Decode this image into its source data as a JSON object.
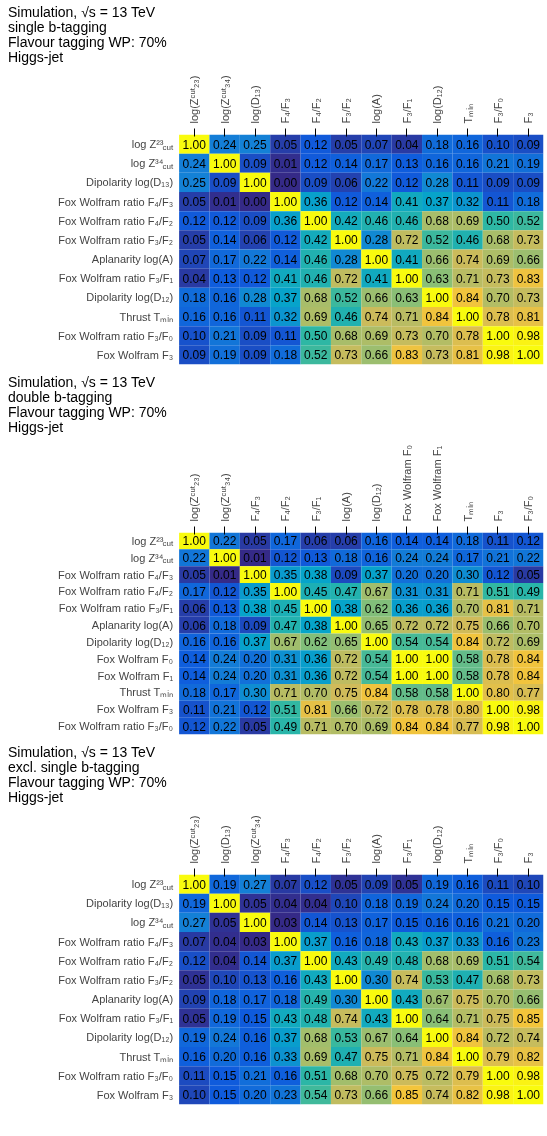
{
  "chart_data": [
    {
      "type": "heatmap",
      "title": "Simulation, √s = 13 TeV",
      "subtitle": "single b-tagging",
      "annotations": [
        "Flavour tagging WP: 70%",
        "Higgs-jet"
      ],
      "data_labels": true,
      "categories": [
        "log(Zᶜᵘᵗ₂₃)",
        "log(Zᶜᵘᵗ₃₄)",
        "log(D₁₃)",
        "F₄/F₃",
        "F₄/F₂",
        "F₃/F₂",
        "log(A)",
        "F₃/F₁",
        "log(D₁₂)",
        "Tₘᵢₙ",
        "F₃/F₀",
        "F₃"
      ],
      "y_categories": [
        "log Z²³$_{cut}$",
        "log Z³⁴$_{cut}$",
        "Dipolarity log(D₁₃)",
        "Fox Wolfram ratio F₄/F₃",
        "Fox Wolfram ratio F₄/F₂",
        "Fox Wolfram ratio F₃/F₂",
        "Aplanarity log(A)",
        "Fox Wolfram ratio F₃/F₁",
        "Dipolarity log(D₁₂)",
        "Thrust Tₘᵢₙ",
        "Fox Wolfram ratio F₃/F₀",
        "Fox Wolfram F₃"
      ],
      "cells": [
        [
          1.0,
          0.24,
          0.25,
          0.05,
          0.12,
          0.05,
          0.07,
          0.04,
          0.18,
          0.16,
          0.1,
          0.09
        ],
        [
          0.24,
          1.0,
          0.09,
          0.01,
          0.12,
          0.14,
          0.17,
          0.13,
          0.16,
          0.16,
          0.21,
          0.19
        ],
        [
          0.25,
          0.09,
          1.0,
          0.0,
          0.09,
          0.06,
          0.22,
          0.12,
          0.28,
          0.11,
          0.09,
          0.09
        ],
        [
          0.05,
          0.01,
          0.0,
          1.0,
          0.36,
          0.12,
          0.14,
          0.41,
          0.37,
          0.32,
          0.11,
          0.18
        ],
        [
          0.12,
          0.12,
          0.09,
          0.36,
          1.0,
          0.42,
          0.46,
          0.46,
          0.68,
          0.69,
          0.5,
          0.52
        ],
        [
          0.05,
          0.14,
          0.06,
          0.12,
          0.42,
          1.0,
          0.28,
          0.72,
          0.52,
          0.46,
          0.68,
          0.73
        ],
        [
          0.07,
          0.17,
          0.22,
          0.14,
          0.46,
          0.28,
          1.0,
          0.41,
          0.66,
          0.74,
          0.69,
          0.66
        ],
        [
          0.04,
          0.13,
          0.12,
          0.41,
          0.46,
          0.72,
          0.41,
          1.0,
          0.63,
          0.71,
          0.73,
          0.83
        ],
        [
          0.18,
          0.16,
          0.28,
          0.37,
          0.68,
          0.52,
          0.66,
          0.63,
          1.0,
          0.84,
          0.7,
          0.73
        ],
        [
          0.16,
          0.16,
          0.11,
          0.32,
          0.69,
          0.46,
          0.74,
          0.71,
          0.84,
          1.0,
          0.78,
          0.81
        ],
        [
          0.1,
          0.21,
          0.09,
          0.11,
          0.5,
          0.68,
          0.69,
          0.73,
          0.7,
          0.78,
          1.0,
          0.98
        ],
        [
          0.09,
          0.19,
          0.09,
          0.18,
          0.52,
          0.73,
          0.66,
          0.83,
          0.73,
          0.81,
          0.98,
          1.0
        ]
      ],
      "cell_labels": [
        [
          "1.00",
          "0.24",
          "0.25",
          "0.05",
          "0.12",
          "0.05",
          "0.07",
          "0.04",
          "0.18",
          "0.16",
          "0.10",
          "0.09"
        ],
        [
          "0.24",
          "1.00",
          "0.09",
          "0.01",
          "0.12",
          "0.14",
          "0.17",
          "0.13",
          "0.16",
          "0.16",
          "0.21",
          "0.19"
        ],
        [
          "0.25",
          "0.09",
          "1.00",
          "0.00",
          "0.09",
          "0.06",
          "0.22",
          "0.12",
          "0.28",
          "0.11",
          "0.09",
          "0.09"
        ],
        [
          "0.05",
          "0.01",
          "0.00",
          "1.00",
          "0.36",
          "0.12",
          "0.14",
          "0.41",
          "0.37",
          "0.32",
          "0.11",
          "0.18"
        ],
        [
          "0.12",
          "0.12",
          "0.09",
          "0.36",
          "1.00",
          "0.42",
          "0.46",
          "0.46",
          "0.68",
          "0.69",
          "0.50",
          "0.52"
        ],
        [
          "0.05",
          "0.14",
          "0.06",
          "0.12",
          "0.42",
          "1.00",
          "0.28",
          "0.72",
          "0.52",
          "0.46",
          "0.68",
          "0.73"
        ],
        [
          "0.07",
          "0.17",
          "0.22",
          "0.14",
          "0.46",
          "0.28",
          "1.00",
          "0.41",
          "0.66",
          "0.74",
          "0.69",
          "0.66"
        ],
        [
          "0.04",
          "0.13",
          "0.12",
          "0.41",
          "0.46",
          "0.72",
          "0.41",
          "1.00",
          "0.63",
          "0.71",
          "0.73",
          "0.83"
        ],
        [
          "0.18",
          "0.16",
          "0.28",
          "0.37",
          "0.68",
          "0.52",
          "0.66",
          "0.63",
          "1.00",
          "0.84",
          "0.70",
          "0.73"
        ],
        [
          "0.16",
          "0.16",
          "0.11",
          "0.32",
          "0.69",
          "0.46",
          "0.74",
          "0.71",
          "0.84",
          "1.00",
          "0.78",
          "0.81"
        ],
        [
          "0.10",
          "0.21",
          "0.09",
          "0.11",
          "0.50",
          "0.68",
          "0.69",
          "0.73",
          "0.70",
          "0.78",
          "1.00",
          "0.98"
        ],
        [
          "0.09",
          "0.19",
          "0.09",
          "0.18",
          "0.52",
          "0.73",
          "0.66",
          "0.83",
          "0.73",
          "0.81",
          "0.98",
          "1.00"
        ]
      ]
    },
    {
      "type": "heatmap",
      "title": "Simulation, √s = 13 TeV",
      "subtitle": "double b-tagging",
      "annotations": [
        "Flavour tagging WP: 70%",
        "Higgs-jet"
      ],
      "data_labels": true,
      "categories": [
        "log(Zᶜᵘᵗ₂₃)",
        "log(Zᶜᵘᵗ₃₄)",
        "F₄/F₃",
        "F₄/F₂",
        "F₃/F₁",
        "log(A)",
        "log(D₁₂)",
        "Fox Wolfram F₀",
        "Fox Wolfram F₁",
        "Tₘᵢₙ",
        "F₃",
        "F₃/F₀"
      ],
      "y_categories": [
        "log Z²³$_{cut}$",
        "log Z³⁴$_{cut}$",
        "Fox Wolfram ratio F₄/F₃",
        "Fox Wolfram ratio F₄/F₂",
        "Fox Wolfram ratio F₃/F₁",
        "Aplanarity log(A)",
        "Dipolarity log(D₁₂)",
        "Fox Wolfram F₀",
        "Fox Wolfram F₁",
        "Thrust Tₘᵢₙ",
        "Fox Wolfram F₃",
        "Fox Wolfram ratio F₃/F₀"
      ],
      "cells": [
        [
          1.0,
          0.22,
          0.05,
          0.17,
          0.06,
          0.06,
          0.16,
          0.14,
          0.14,
          0.18,
          0.11,
          0.12
        ],
        [
          0.22,
          1.0,
          0.01,
          0.12,
          0.13,
          0.18,
          0.16,
          0.24,
          0.24,
          0.17,
          0.21,
          0.22
        ],
        [
          0.05,
          0.01,
          1.0,
          0.35,
          0.38,
          0.09,
          0.37,
          0.2,
          0.2,
          0.3,
          0.12,
          0.05
        ],
        [
          0.17,
          0.12,
          0.35,
          1.0,
          0.45,
          0.47,
          0.67,
          0.31,
          0.31,
          0.71,
          0.51,
          0.49
        ],
        [
          0.06,
          0.13,
          0.38,
          0.45,
          1.0,
          0.38,
          0.62,
          0.36,
          0.36,
          0.7,
          0.81,
          0.71
        ],
        [
          0.06,
          0.18,
          0.09,
          0.47,
          0.38,
          1.0,
          0.65,
          0.72,
          0.72,
          0.75,
          0.66,
          0.7
        ],
        [
          0.16,
          0.16,
          0.37,
          0.67,
          0.62,
          0.65,
          1.0,
          0.54,
          0.54,
          0.84,
          0.72,
          0.69
        ],
        [
          0.14,
          0.24,
          0.2,
          0.31,
          0.36,
          0.72,
          0.54,
          1.0,
          1.0,
          0.58,
          0.78,
          0.84
        ],
        [
          0.14,
          0.24,
          0.2,
          0.31,
          0.36,
          0.72,
          0.54,
          1.0,
          1.0,
          0.58,
          0.78,
          0.84
        ],
        [
          0.18,
          0.17,
          0.3,
          0.71,
          0.7,
          0.75,
          0.84,
          0.58,
          0.58,
          1.0,
          0.8,
          0.77
        ],
        [
          0.11,
          0.21,
          0.12,
          0.51,
          0.81,
          0.66,
          0.72,
          0.78,
          0.78,
          0.8,
          1.0,
          0.98
        ],
        [
          0.12,
          0.22,
          0.05,
          0.49,
          0.71,
          0.7,
          0.69,
          0.84,
          0.84,
          0.77,
          0.98,
          1.0
        ]
      ],
      "cell_labels": [
        [
          "1.00",
          "0.22",
          "0.05",
          "0.17",
          "0.06",
          "0.06",
          "0.16",
          "0.14",
          "0.14",
          "0.18",
          "0.11",
          "0.12"
        ],
        [
          "0.22",
          "1.00",
          "0.01",
          "0.12",
          "0.13",
          "0.18",
          "0.16",
          "0.24",
          "0.24",
          "0.17",
          "0.21",
          "0.22"
        ],
        [
          "0.05",
          "0.01",
          "1.00",
          "0.35",
          "0.38",
          "0.09",
          "0.37",
          "0.20",
          "0.20",
          "0.30",
          "0.12",
          "0.05"
        ],
        [
          "0.17",
          "0.12",
          "0.35",
          "1.00",
          "0.45",
          "0.47",
          "0.67",
          "0.31",
          "0.31",
          "0.71",
          "0.51",
          "0.49"
        ],
        [
          "0.06",
          "0.13",
          "0.38",
          "0.45",
          "1.00",
          "0.38",
          "0.62",
          "0.36",
          "0.36",
          "0.70",
          "0.81",
          "0.71"
        ],
        [
          "0.06",
          "0.18",
          "0.09",
          "0.47",
          "0.38",
          "1.00",
          "0.65",
          "0.72",
          "0.72",
          "0.75",
          "0.66",
          "0.70"
        ],
        [
          "0.16",
          "0.16",
          "0.37",
          "0.67",
          "0.62",
          "0.65",
          "1.00",
          "0.54",
          "0.54",
          "0.84",
          "0.72",
          "0.69"
        ],
        [
          "0.14",
          "0.24",
          "0.20",
          "0.31",
          "0.36",
          "0.72",
          "0.54",
          "1.00",
          "1.00",
          "0.58",
          "0.78",
          "0.84"
        ],
        [
          "0.14",
          "0.24",
          "0.20",
          "0.31",
          "0.36",
          "0.72",
          "0.54",
          "1.00",
          "1.00",
          "0.58",
          "0.78",
          "0.84"
        ],
        [
          "0.18",
          "0.17",
          "0.30",
          "0.71",
          "0.70",
          "0.75",
          "0.84",
          "0.58",
          "0.58",
          "1.00",
          "0.80",
          "0.77"
        ],
        [
          "0.11",
          "0.21",
          "0.12",
          "0.51",
          "0.81",
          "0.66",
          "0.72",
          "0.78",
          "0.78",
          "0.80",
          "1.00",
          "0.98"
        ],
        [
          "0.12",
          "0.22",
          "0.05",
          "0.49",
          "0.71",
          "0.70",
          "0.69",
          "0.84",
          "0.84",
          "0.77",
          "0.98",
          "1.00"
        ]
      ]
    },
    {
      "type": "heatmap",
      "title": "Simulation, √s = 13 TeV",
      "subtitle": "excl. single b-tagging",
      "annotations": [
        "Flavour tagging WP: 70%",
        "Higgs-jet"
      ],
      "data_labels": true,
      "categories": [
        "log(Zᶜᵘᵗ₂₃)",
        "log(D₁₃)",
        "log(Zᶜᵘᵗ₃₄)",
        "F₄/F₃",
        "F₄/F₂",
        "F₃/F₂",
        "log(A)",
        "F₃/F₁",
        "log(D₁₂)",
        "Tₘᵢₙ",
        "F₃/F₀",
        "F₃"
      ],
      "y_categories": [
        "log Z²³$_{cut}$",
        "Dipolarity log(D₁₃)",
        "log Z³⁴$_{cut}$",
        "Fox Wolfram ratio F₄/F₃",
        "Fox Wolfram ratio F₄/F₂",
        "Fox Wolfram ratio F₃/F₂",
        "Aplanarity log(A)",
        "Fox Wolfram ratio F₃/F₁",
        "Dipolarity log(D₁₂)",
        "Thrust Tₘᵢₙ",
        "Fox Wolfram ratio F₃/F₀",
        "Fox Wolfram F₃"
      ],
      "cells": [
        [
          1.0,
          0.19,
          0.27,
          0.07,
          0.12,
          0.05,
          0.09,
          0.05,
          0.19,
          0.16,
          0.11,
          0.1
        ],
        [
          0.19,
          1.0,
          0.05,
          0.04,
          0.04,
          0.1,
          0.18,
          0.19,
          0.24,
          0.2,
          0.15,
          0.15
        ],
        [
          0.27,
          0.05,
          1.0,
          0.03,
          0.14,
          0.13,
          0.17,
          0.15,
          0.16,
          0.16,
          0.21,
          0.2
        ],
        [
          0.07,
          0.04,
          0.03,
          1.0,
          0.37,
          0.16,
          0.18,
          0.43,
          0.37,
          0.33,
          0.16,
          0.23
        ],
        [
          0.12,
          0.04,
          0.14,
          0.37,
          1.0,
          0.43,
          0.49,
          0.48,
          0.68,
          0.69,
          0.51,
          0.54
        ],
        [
          0.05,
          0.1,
          0.13,
          0.16,
          0.43,
          1.0,
          0.3,
          0.74,
          0.53,
          0.47,
          0.68,
          0.73
        ],
        [
          0.09,
          0.18,
          0.17,
          0.18,
          0.49,
          0.3,
          1.0,
          0.43,
          0.67,
          0.75,
          0.7,
          0.66
        ],
        [
          0.05,
          0.19,
          0.15,
          0.43,
          0.48,
          0.74,
          0.43,
          1.0,
          0.64,
          0.71,
          0.75,
          0.85
        ],
        [
          0.19,
          0.24,
          0.16,
          0.37,
          0.68,
          0.53,
          0.67,
          0.64,
          1.0,
          0.84,
          0.72,
          0.74
        ],
        [
          0.16,
          0.2,
          0.16,
          0.33,
          0.69,
          0.47,
          0.75,
          0.71,
          0.84,
          1.0,
          0.79,
          0.82
        ],
        [
          0.11,
          0.15,
          0.21,
          0.16,
          0.51,
          0.68,
          0.7,
          0.75,
          0.72,
          0.79,
          1.0,
          0.98
        ],
        [
          0.1,
          0.15,
          0.2,
          0.23,
          0.54,
          0.73,
          0.66,
          0.85,
          0.74,
          0.82,
          0.98,
          1.0
        ]
      ],
      "cell_labels": [
        [
          "1.00",
          "0.19",
          "0.27",
          "0.07",
          "0.12",
          "0.05",
          "0.09",
          "0.05",
          "0.19",
          "0.16",
          "0.11",
          "0.10"
        ],
        [
          "0.19",
          "1.00",
          "0.05",
          "0.04",
          "0.04",
          "0.10",
          "0.18",
          "0.19",
          "0.24",
          "0.20",
          "0.15",
          "0.15"
        ],
        [
          "0.27",
          "0.05",
          "1.00",
          "0.03",
          "0.14",
          "0.13",
          "0.17",
          "0.15",
          "0.16",
          "0.16",
          "0.21",
          "0.20"
        ],
        [
          "0.07",
          "0.04",
          "0.03",
          "1.00",
          "0.37",
          "0.16",
          "0.18",
          "0.43",
          "0.37",
          "0.33",
          "0.16",
          "0.23"
        ],
        [
          "0.12",
          "0.04",
          "0.14",
          "0.37",
          "1.00",
          "0.43",
          "0.49",
          "0.48",
          "0.68",
          "0.69",
          "0.51",
          "0.54"
        ],
        [
          "0.05",
          "0.10",
          "0.13",
          "0.16",
          "0.43",
          "1.00",
          "0.30",
          "0.74",
          "0.53",
          "0.47",
          "0.68",
          "0.73"
        ],
        [
          "0.09",
          "0.18",
          "0.17",
          "0.18",
          "0.49",
          "0.30",
          "1.00",
          "0.43",
          "0.67",
          "0.75",
          "0.70",
          "0.66"
        ],
        [
          "0.05",
          "0.19",
          "0.15",
          "0.43",
          "0.48",
          "0.74",
          "0.43",
          "1.00",
          "0.64",
          "0.71",
          "0.75",
          "0.85"
        ],
        [
          "0.19",
          "0.24",
          "0.16",
          "0.37",
          "0.68",
          "0.53",
          "0.67",
          "0.64",
          "1.00",
          "0.84",
          "0.72",
          "0.74"
        ],
        [
          "0.16",
          "0.20",
          "0.16",
          "0.33",
          "0.69",
          "0.47",
          "0.75",
          "0.71",
          "0.84",
          "1.00",
          "0.79",
          "0.82"
        ],
        [
          "0.11",
          "0.15",
          "0.21",
          "0.16",
          "0.51",
          "0.68",
          "0.70",
          "0.75",
          "0.72",
          "0.79",
          "1.00",
          "0.98"
        ],
        [
          "0.10",
          "0.15",
          "0.20",
          "0.23",
          "0.54",
          "0.73",
          "0.66",
          "0.85",
          "0.74",
          "0.82",
          "0.98",
          "1.00"
        ]
      ]
    }
  ]
}
